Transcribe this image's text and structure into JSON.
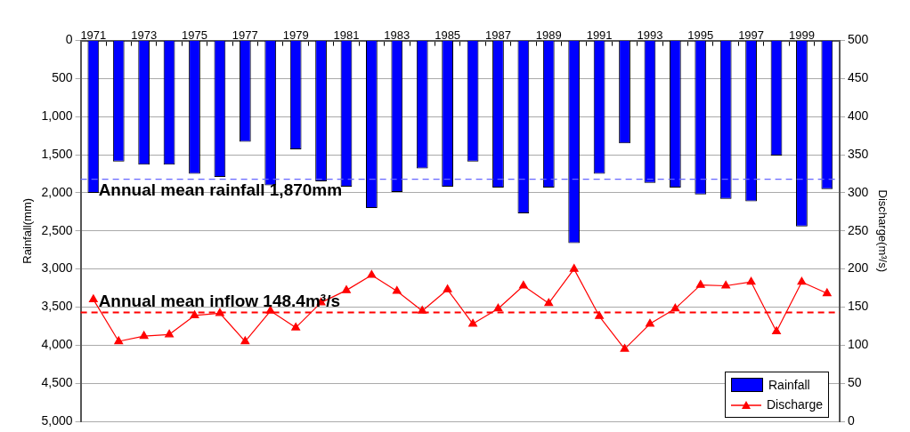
{
  "chart_data": {
    "type": "bar",
    "xlabel": null,
    "ylabel": "Rainfall(mm)",
    "y2label": "Discharge(m³/s)",
    "categories": [
      "1971",
      null,
      "1973",
      null,
      "1975",
      null,
      "1977",
      null,
      "1979",
      null,
      "1981",
      null,
      "1983",
      null,
      "1985",
      null,
      "1987",
      null,
      "1989",
      null,
      "1991",
      null,
      "1993",
      null,
      "1995",
      null,
      "1997",
      null,
      "1999",
      null
    ],
    "series": [
      {
        "name": "Rainfall",
        "color": "#0000ff",
        "values": [
          2000,
          1590,
          1630,
          1630,
          1750,
          1790,
          1330,
          1900,
          1430,
          1850,
          1920,
          2200,
          1990,
          1680,
          1920,
          1590,
          1930,
          2270,
          1930,
          2660,
          1750,
          1350,
          1870,
          1930,
          2020,
          2080,
          2110,
          1510,
          2440,
          1950
        ]
      },
      {
        "name": "Discharge",
        "type": "line",
        "axis": "y2",
        "color": "#ff0000",
        "marker": "triangle",
        "values": [
          160,
          105,
          112,
          114,
          139,
          142,
          105,
          145,
          123,
          156,
          172,
          192,
          171,
          145,
          173,
          128,
          148,
          178,
          155,
          200,
          138,
          95,
          128,
          148,
          179,
          178,
          183,
          118,
          183,
          168
        ]
      }
    ],
    "ylim": [
      5000,
      0
    ],
    "yticks": [
      0,
      500,
      {
        "value": 1000,
        "label": "1,000"
      },
      {
        "value": 1500,
        "label": "1,500"
      },
      {
        "value": 2000,
        "label": "2,000"
      },
      {
        "value": 2500,
        "label": "2,500"
      },
      {
        "value": 3000,
        "label": "3,000"
      },
      {
        "value": 3500,
        "label": "3,500"
      },
      {
        "value": 4000,
        "label": "4,000"
      },
      {
        "value": 4500,
        "label": "4,500"
      },
      {
        "value": 5000,
        "label": "5,000"
      }
    ],
    "y2lim": [
      0,
      500
    ],
    "y2ticks": [
      0,
      50,
      100,
      150,
      200,
      250,
      300,
      350,
      400,
      450,
      500
    ],
    "ref_lines": [
      {
        "axis": "y",
        "value": 1820,
        "label": "Annual mean rainfall 1,870mm",
        "color": "#6666ff",
        "line_style": "dashed"
      },
      {
        "axis": "y2",
        "value": 143,
        "label": "Annual mean inflow 148.4m³/s",
        "color": "#ff0000",
        "line_style": "dashed"
      }
    ],
    "grid": "y",
    "legend": "bottom right"
  }
}
